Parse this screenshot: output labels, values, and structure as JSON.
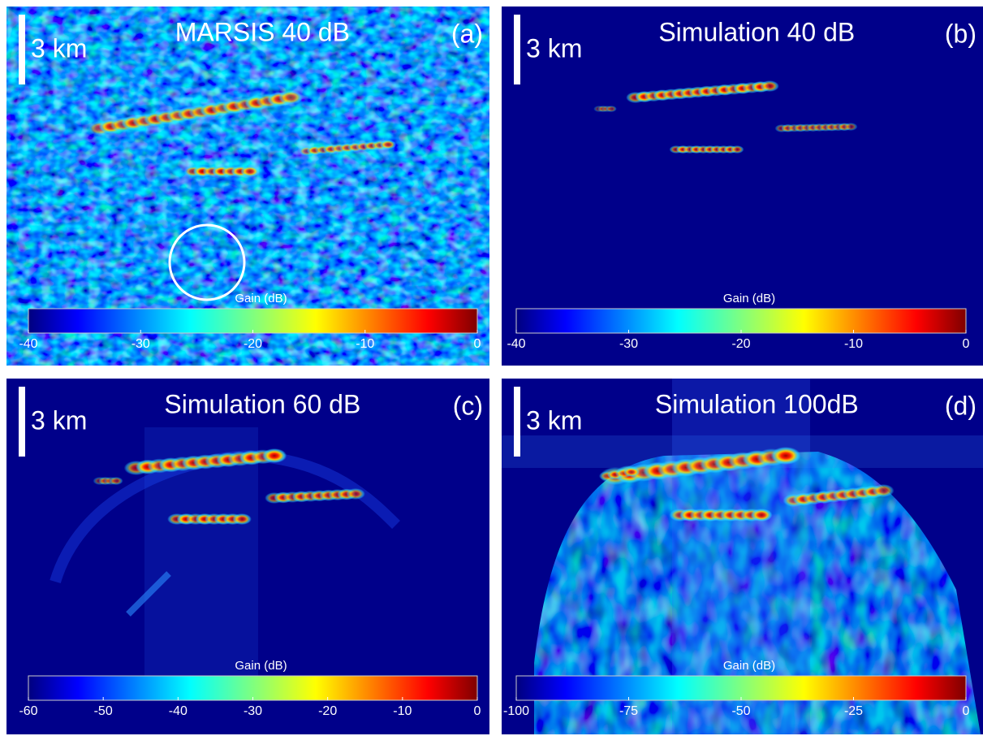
{
  "panels": [
    {
      "tag": "(a)",
      "title": "MARSIS 40 dB",
      "scale_label": "3 km",
      "colorbar": {
        "label": "Gain (dB)",
        "lim": [
          -40,
          0
        ],
        "ticks": [
          -40,
          -30,
          -20,
          -10,
          0
        ]
      }
    },
    {
      "tag": "(b)",
      "title": "Simulation  40 dB",
      "scale_label": "3 km",
      "colorbar": {
        "label": "Gain (dB)",
        "lim": [
          -40,
          0
        ],
        "ticks": [
          -40,
          -30,
          -20,
          -10,
          0
        ]
      }
    },
    {
      "tag": "(c)",
      "title": "Simulation 60 dB",
      "scale_label": "3 km",
      "colorbar": {
        "label": "Gain (dB)",
        "lim": [
          -60,
          0
        ],
        "ticks": [
          -60,
          -50,
          -40,
          -30,
          -20,
          -10,
          0
        ]
      }
    },
    {
      "tag": "(d)",
      "title": "Simulation 100dB",
      "scale_label": "3 km",
      "colorbar": {
        "label": "Gain (dB)",
        "lim": [
          -100,
          0
        ],
        "ticks": [
          -100,
          -75,
          -50,
          -25,
          0
        ]
      }
    }
  ]
}
